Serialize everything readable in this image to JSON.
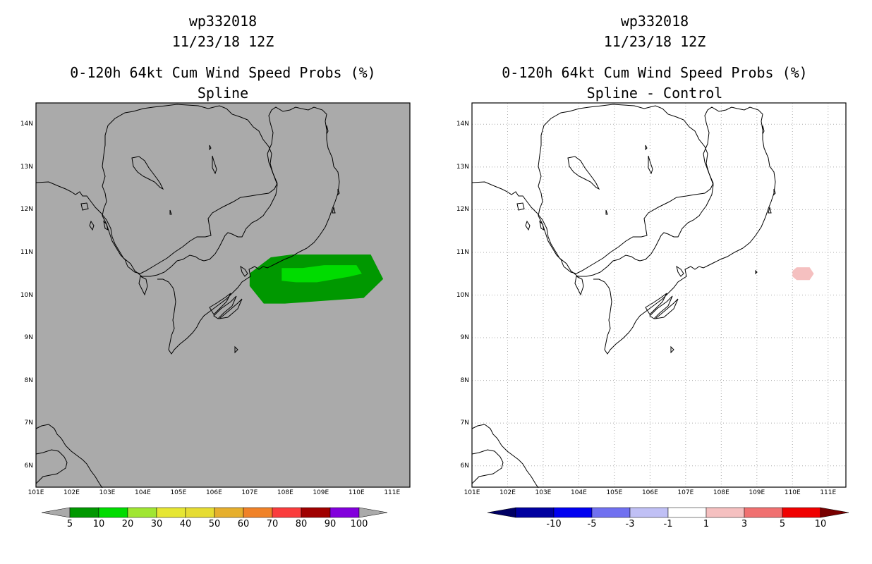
{
  "left": {
    "storm_id": "wp332018",
    "date": "11/23/18 12Z",
    "product": "0-120h 64kt Cum Wind Speed Probs (%)",
    "subtitle": "Spline",
    "colorbar_labels": [
      "5",
      "10",
      "20",
      "30",
      "40",
      "50",
      "60",
      "70",
      "80",
      "90",
      "100"
    ],
    "colorbar_colors": [
      "#009800",
      "#00dc00",
      "#a0e632",
      "#e6e632",
      "#e6dc32",
      "#e6af2d",
      "#f08228",
      "#fa3c3c",
      "#a00000",
      "#8200dc"
    ],
    "background_color": "#aaaaaa",
    "probability_areas": [
      {
        "level": "5-10",
        "color": "#009800",
        "lon_min": 107.0,
        "lon_max": 110.4,
        "lat_min": 9.8,
        "lat_max": 10.95
      },
      {
        "level": "10-20",
        "color": "#00dc00",
        "lon_min": 107.9,
        "lon_max": 110.0,
        "lat_min": 10.3,
        "lat_max": 10.7
      }
    ]
  },
  "right": {
    "storm_id": "wp332018",
    "date": "11/23/18 12Z",
    "product": "0-120h 64kt Cum Wind Speed Probs (%)",
    "subtitle": "Spline - Control",
    "colorbar_labels": [
      "-10",
      "-5",
      "-3",
      "-1",
      "1",
      "3",
      "5",
      "10"
    ],
    "colorbar_colors": [
      "#0000a0",
      "#0000f0",
      "#7070f0",
      "#c0c0f5",
      "#ffffff",
      "#f5c0c0",
      "#f07070",
      "#f00000"
    ],
    "difference_areas": [
      {
        "range": "1-3",
        "color": "#f5c0c0",
        "lon_min": 110.0,
        "lon_max": 110.6,
        "lat_min": 10.35,
        "lat_max": 10.65
      }
    ]
  },
  "axes": {
    "lat_labels": [
      "14N",
      "13N",
      "12N",
      "11N",
      "10N",
      "9N",
      "8N",
      "7N",
      "6N"
    ],
    "lon_labels": [
      "101E",
      "102E",
      "103E",
      "104E",
      "105E",
      "106E",
      "107E",
      "108E",
      "109E",
      "110E",
      "111E"
    ]
  },
  "chart_data": {
    "type": "map",
    "lon_range": [
      101,
      111.5
    ],
    "lat_range": [
      5.5,
      14.5
    ]
  }
}
